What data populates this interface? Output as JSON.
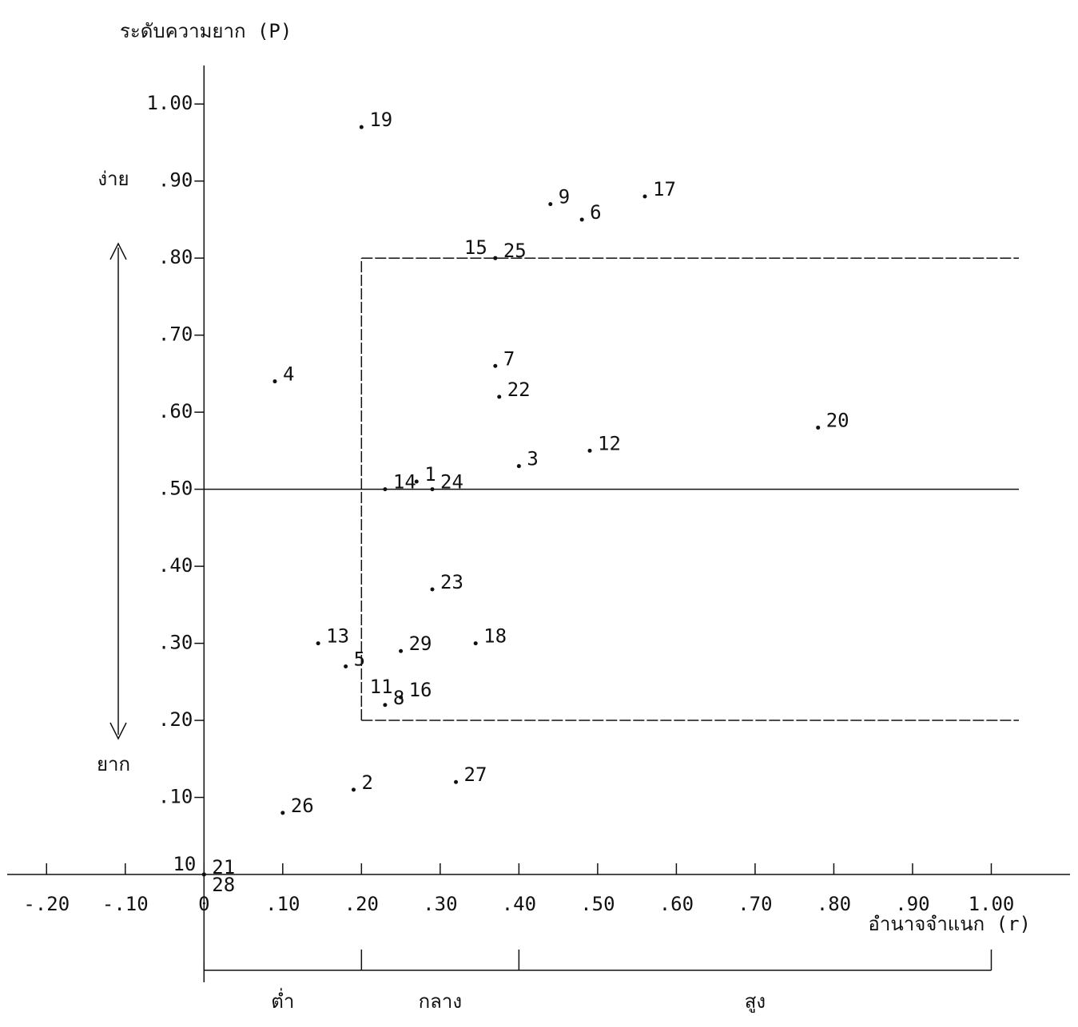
{
  "chart_data": {
    "type": "scatter",
    "title": "ระดับความยาก (P)",
    "x_label": "อำนาจจำแนก (r)",
    "y_upper_label": "ง่าย",
    "y_lower_label": "ยาก",
    "xlim": [
      -0.25,
      1.1
    ],
    "ylim": [
      0,
      1.05
    ],
    "xticks": [
      {
        "value": -0.2,
        "label": "-.20"
      },
      {
        "value": -0.1,
        "label": "-.10"
      },
      0,
      {
        "value": 0.1,
        "label": ".10"
      },
      {
        "value": 0.2,
        "label": ".20"
      },
      {
        "value": 0.3,
        "label": ".30"
      },
      {
        "value": 0.4,
        "label": ".40"
      },
      {
        "value": 0.5,
        "label": ".50"
      },
      {
        "value": 0.6,
        "label": ".60"
      },
      {
        "value": 0.7,
        "label": ".70"
      },
      {
        "value": 0.8,
        "label": ".80"
      },
      {
        "value": 0.9,
        "label": ".90"
      },
      {
        "value": 1,
        "label": "1.00"
      }
    ],
    "yticks": [
      {
        "value": 0.1,
        "label": ".10"
      },
      {
        "value": 0.2,
        "label": ".20"
      },
      {
        "value": 0.3,
        "label": ".30"
      },
      {
        "value": 0.4,
        "label": ".40"
      },
      {
        "value": 0.5,
        "label": ".50"
      },
      {
        "value": 0.6,
        "label": ".60"
      },
      {
        "value": 0.7,
        "label": ".70"
      },
      {
        "value": 0.8,
        "label": ".80"
      },
      {
        "value": 0.9,
        "label": ".90"
      },
      {
        "value": 1,
        "label": "1.00"
      }
    ],
    "color": "#111111",
    "point_labels": [
      "19",
      "9",
      "6",
      "17",
      "25",
      "15",
      "4",
      "7",
      "22",
      "20",
      "12",
      "3",
      "14",
      "1",
      "24",
      "23",
      "13",
      "5",
      "29",
      "18",
      "16",
      "11",
      "8",
      "2",
      "27",
      "26",
      "21",
      "10",
      "28"
    ],
    "x": [
      0.2,
      0.44,
      0.48,
      0.56,
      0.37,
      0.37,
      0.09,
      0.37,
      0.375,
      0.78,
      0.49,
      0.4,
      0.23,
      0.27,
      0.29,
      0.29,
      0.145,
      0.18,
      0.25,
      0.345,
      0.25,
      0.25,
      0.23,
      0.19,
      0.32,
      0.1,
      0,
      0,
      0
    ],
    "values": [
      0.97,
      0.87,
      0.85,
      0.88,
      0.8,
      0.8,
      0.64,
      0.66,
      0.62,
      0.58,
      0.55,
      0.53,
      0.5,
      0.51,
      0.5,
      0.37,
      0.3,
      0.27,
      0.29,
      0.3,
      0.23,
      0.23,
      0.22,
      0.11,
      0.12,
      0.08,
      0,
      0,
      0
    ],
    "hline": 0.5,
    "reference_box": {
      "x0": 0.2,
      "y0": 0.2,
      "y1": 0.8
    },
    "x_ranges": [
      {
        "label": "ต่ำ",
        "from": 0,
        "to": 0.2
      },
      {
        "label": "กลาง",
        "from": 0.2,
        "to": 0.4
      },
      {
        "label": "สูง",
        "from": 0.4,
        "to": 1
      }
    ]
  }
}
